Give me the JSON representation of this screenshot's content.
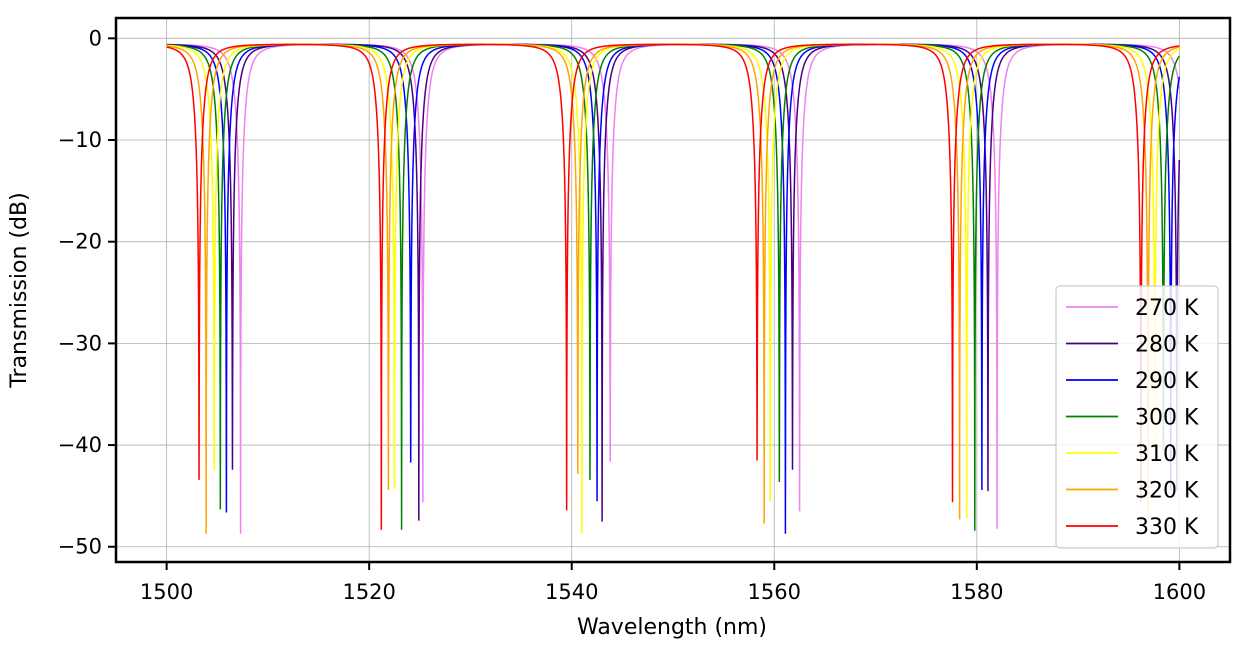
{
  "chart_data": {
    "type": "line",
    "xlabel": "Wavelength (nm)",
    "ylabel": "Transmission (dB)",
    "xlim": [
      1495,
      1605
    ],
    "ylim": [
      -51.5,
      2
    ],
    "x_ticks": [
      1500,
      1520,
      1540,
      1560,
      1580,
      1600
    ],
    "x_tick_labels": [
      "1500",
      "1520",
      "1540",
      "1560",
      "1580",
      "1600"
    ],
    "y_ticks": [
      0,
      -10,
      -20,
      -30,
      -40,
      -50
    ],
    "y_tick_labels": [
      "0",
      "−10",
      "−20",
      "−30",
      "−40",
      "−50"
    ],
    "grid": true,
    "legend_position": "lower-right",
    "x_range": [
      1500,
      1600
    ],
    "baseline_db": -0.5,
    "resonance_depth_db": [
      48.7,
      47.4,
      48.7,
      48.4,
      48.7,
      48.7,
      48.3
    ],
    "series": [
      {
        "name": "270 K",
        "color": "#ee82ee",
        "resonances_nm": [
          1507.3,
          1525.3,
          1543.8,
          1562.5,
          1582.0
        ],
        "min_db": [
          -48.7,
          -45.6,
          -41.6,
          -46.5,
          -48.2
        ]
      },
      {
        "name": "280 K",
        "color": "#4b0082",
        "resonances_nm": [
          1506.5,
          1524.9,
          1543.0,
          1561.8,
          1581.1
        ],
        "min_db": [
          -42.4,
          -47.4,
          -47.5,
          -42.4,
          -44.5
        ]
      },
      {
        "name": "290 K",
        "color": "#0000ff",
        "resonances_nm": [
          1505.9,
          1524.1,
          1542.5,
          1561.1,
          1580.5
        ],
        "min_db": [
          -46.6,
          -41.7,
          -45.5,
          -48.7,
          -44.4
        ]
      },
      {
        "name": "300 K",
        "color": "#008000",
        "resonances_nm": [
          1505.3,
          1523.2,
          1541.8,
          1560.5,
          1579.8
        ],
        "min_db": [
          -46.3,
          -48.3,
          -43.4,
          -43.6,
          -48.4
        ]
      },
      {
        "name": "310 K",
        "color": "#ffff00",
        "resonances_nm": [
          1504.7,
          1522.5,
          1541.0,
          1559.6,
          1579.0
        ],
        "min_db": [
          -42.5,
          -44.3,
          -48.7,
          -45.5,
          -47.2
        ]
      },
      {
        "name": "320 K",
        "color": "#ffa500",
        "resonances_nm": [
          1503.9,
          1521.9,
          1540.6,
          1559.0,
          1578.3
        ],
        "min_db": [
          -48.7,
          -44.4,
          -42.8,
          -47.7,
          -47.3
        ]
      },
      {
        "name": "330 K",
        "color": "#ff0000",
        "resonances_nm": [
          1503.2,
          1521.2,
          1539.5,
          1558.3,
          1577.6
        ],
        "min_db": [
          -43.4,
          -48.3,
          -46.4,
          -41.5,
          -45.6
        ]
      }
    ]
  }
}
